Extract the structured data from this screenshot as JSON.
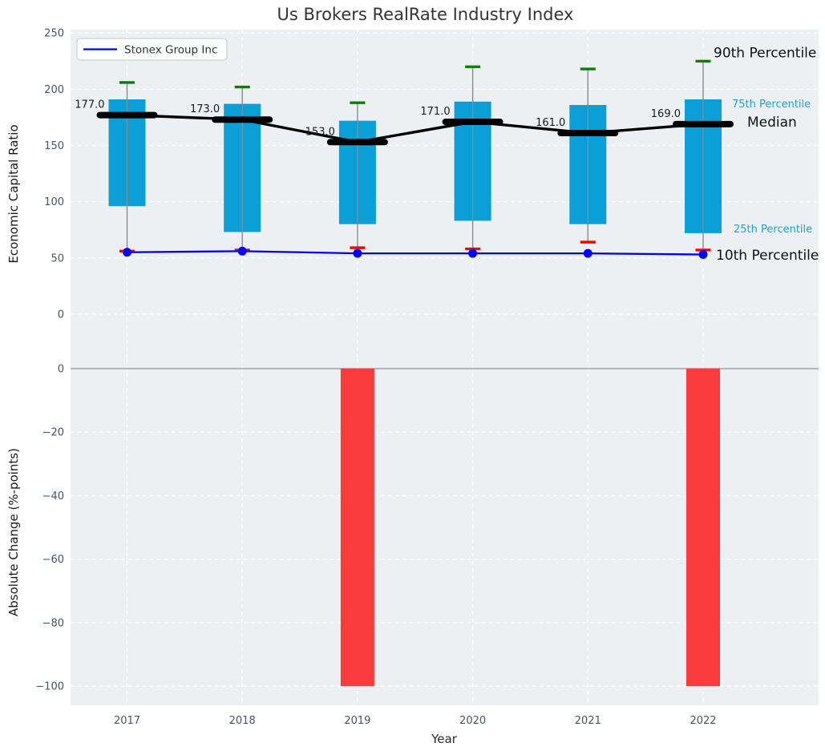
{
  "chart_data": {
    "type": "box",
    "title": "Us Brokers RealRate Industry Index",
    "xlabel": "Year",
    "categories": [
      "2017",
      "2018",
      "2019",
      "2020",
      "2021",
      "2022"
    ],
    "legend": {
      "label": "Stonex Group Inc",
      "position": "upper left"
    },
    "panels": [
      {
        "type": "box+line",
        "ylabel": "Economic Capital Ratio",
        "yticks": [
          250,
          200,
          150,
          100,
          50,
          0
        ],
        "ylim": [
          -40,
          253
        ],
        "grid": true,
        "series": [
          {
            "name": "90th Percentile",
            "values": [
              206,
              202,
              188,
              220,
              218,
              225
            ]
          },
          {
            "name": "75th Percentile",
            "values": [
              191,
              187,
              172,
              189,
              186,
              191
            ]
          },
          {
            "name": "Median",
            "values": [
              177,
              173,
              153,
              171,
              161,
              169
            ]
          },
          {
            "name": "25th Percentile",
            "values": [
              96,
              73,
              80,
              83,
              80,
              72
            ]
          },
          {
            "name": "10th Percentile",
            "values": [
              56,
              57,
              59,
              58,
              64,
              57
            ]
          },
          {
            "name": "Stonex Group Inc",
            "values": [
              55,
              56,
              54,
              54,
              54,
              53
            ]
          }
        ],
        "median_labels": [
          "177.0",
          "173.0",
          "153.0",
          "171.0",
          "161.0",
          "169.0"
        ],
        "annotations": [
          {
            "text": "90th Percentile",
            "style": "large-black"
          },
          {
            "text": "75th Percentile",
            "style": "small-cyan"
          },
          {
            "text": "Median",
            "style": "large-black"
          },
          {
            "text": "25th Percentile",
            "style": "small-cyan"
          },
          {
            "text": "10th Percentile",
            "style": "large-black"
          }
        ]
      },
      {
        "type": "bar",
        "ylabel": "Absolute Change (%-points)",
        "yticks": [
          0,
          -20,
          -40,
          -60,
          -80,
          -100
        ],
        "ylim": [
          -106,
          3
        ],
        "grid": true,
        "values": [
          0,
          0,
          -100,
          0,
          0,
          -100
        ]
      }
    ],
    "colors": {
      "box": "#0aa0d7",
      "percentile_label": "#1f9fd6",
      "bar_negative": "#fa3b3b",
      "company_line": "#0000ff",
      "median_line": "#000000",
      "p90_cap": "#068006",
      "p10_cap": "#ff0000",
      "axes_bg": "#edf0f2",
      "grid": "#ffffff",
      "tick_label": "#44536b",
      "zero_line": "#b3b3b3",
      "whisker": "#8a8a8a"
    }
  }
}
